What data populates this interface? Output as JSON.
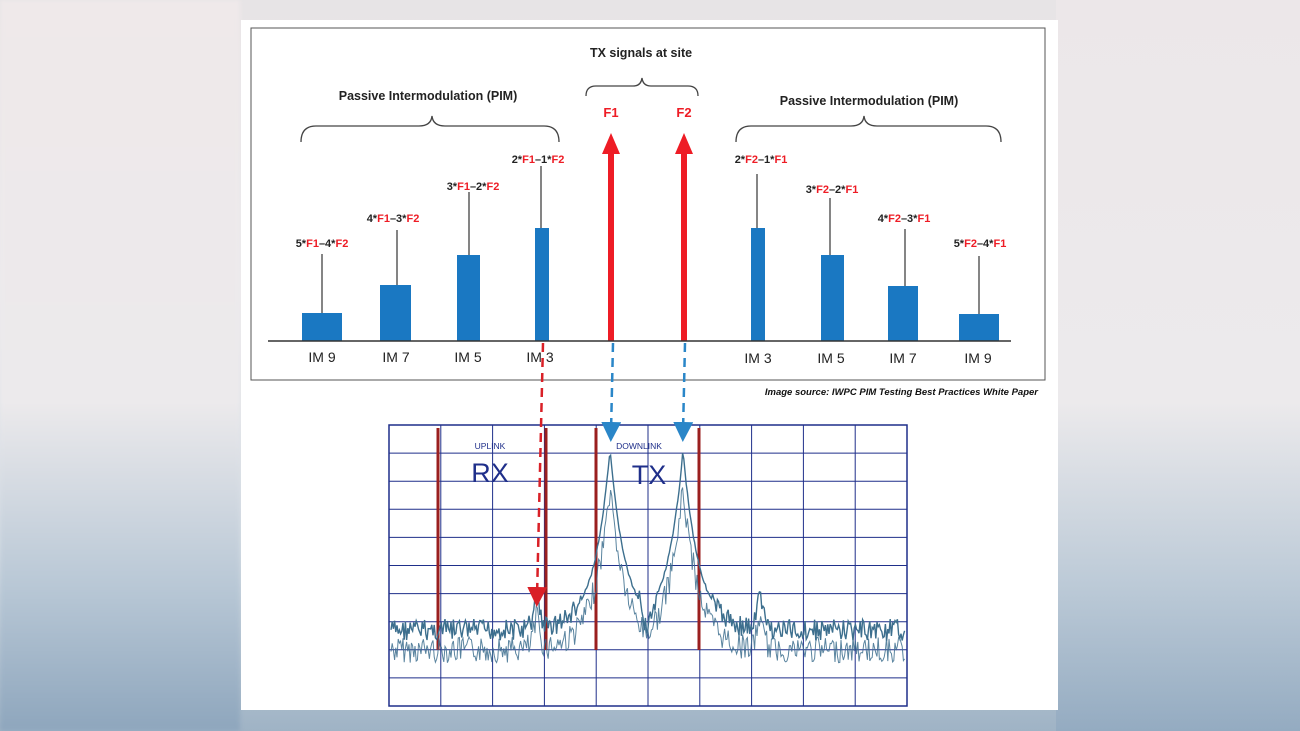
{
  "top": {
    "tx_title": "TX signals at site",
    "pim_left": "Passive Intermodulation (PIM)",
    "pim_right": "Passive Intermodulation (PIM)",
    "f1": "F1",
    "f2": "F2",
    "source": "Image source: IWPC PIM Testing Best Practices White Paper"
  },
  "products_left": [
    {
      "im": "IM 9",
      "c1": "5*",
      "a": "F1",
      "mid": "–4*",
      "b": "F2",
      "level": 0.25
    },
    {
      "im": "IM 7",
      "c1": "4*",
      "a": "F1",
      "mid": "–3*",
      "b": "F2",
      "level": 0.5
    },
    {
      "im": "IM 5",
      "c1": "3*",
      "a": "F1",
      "mid": "–2*",
      "b": "F2",
      "level": 0.8
    },
    {
      "im": "IM 3",
      "c1": "2*",
      "a": "F1",
      "mid": "–1*",
      "b": "F2",
      "level": 1.0
    }
  ],
  "products_right": [
    {
      "im": "IM 3",
      "c1": "2*",
      "a": "F2",
      "mid": "–1*",
      "b": "F1",
      "level": 1.0
    },
    {
      "im": "IM 5",
      "c1": "3*",
      "a": "F2",
      "mid": "–2*",
      "b": "F1",
      "level": 0.8
    },
    {
      "im": "IM 7",
      "c1": "4*",
      "a": "F2",
      "mid": "–3*",
      "b": "F1",
      "level": 0.48
    },
    {
      "im": "IM 9",
      "c1": "5*",
      "a": "F2",
      "mid": "–4*",
      "b": "F1",
      "level": 0.24
    }
  ],
  "spectrum": {
    "uplink": "UPLINK",
    "rx": "RX",
    "downlink": "DOWNLINK",
    "tx": "TX"
  },
  "colors": {
    "bar": "#1a78c2",
    "red": "#ee1c25",
    "grid": "#1f2f8a",
    "band_line": "#9a1f1f",
    "trace": "#3d6f8e",
    "dashed_red": "#d92027",
    "dashed_blue": "#2a86c8"
  }
}
